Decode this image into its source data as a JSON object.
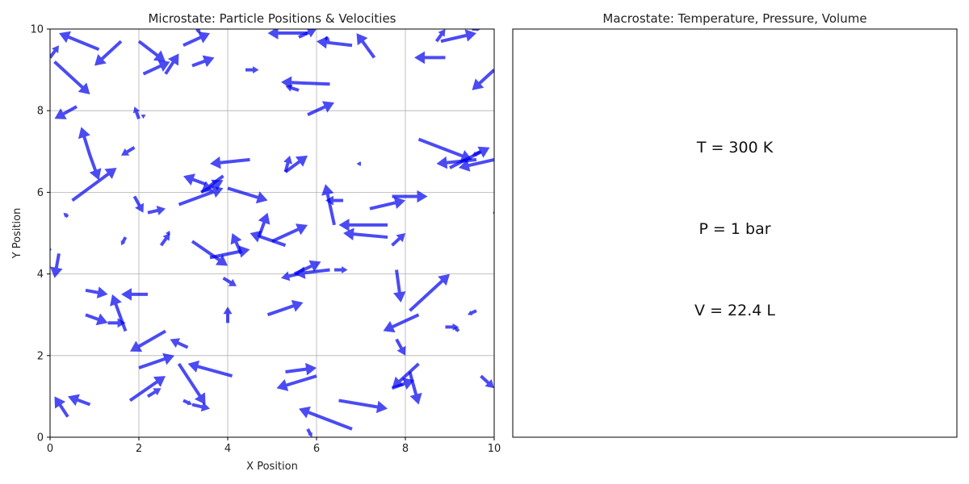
{
  "chart_data": [
    {
      "type": "quiver",
      "title": "Microstate: Particle Positions & Velocities",
      "xlabel": "X Position",
      "ylabel": "Y Position",
      "xlim": [
        0,
        10
      ],
      "ylim": [
        0,
        10
      ],
      "xticks": [
        0,
        2,
        4,
        6,
        8,
        10
      ],
      "yticks": [
        0,
        2,
        4,
        6,
        8,
        10
      ],
      "grid": true,
      "arrow_color": "#0000ee",
      "arrows": [
        [
          1.1,
          9.5,
          -0.9,
          0.4
        ],
        [
          0.0,
          9.3,
          0.2,
          0.3
        ],
        [
          0.1,
          9.2,
          0.8,
          -0.8
        ],
        [
          1.6,
          9.7,
          -0.6,
          -0.6
        ],
        [
          2.0,
          9.7,
          0.6,
          -0.5
        ],
        [
          2.6,
          8.9,
          0.3,
          0.5
        ],
        [
          2.1,
          8.9,
          0.6,
          0.3
        ],
        [
          3.0,
          9.6,
          0.6,
          0.3
        ],
        [
          3.2,
          9.1,
          0.5,
          0.2
        ],
        [
          3.3,
          10.0,
          0.1,
          -0.1
        ],
        [
          4.4,
          9.0,
          0.3,
          0.0
        ],
        [
          5.8,
          9.9,
          -0.9,
          0.0
        ],
        [
          5.6,
          9.8,
          0.4,
          0.2
        ],
        [
          6.2,
          9.8,
          0.1,
          -0.1
        ],
        [
          6.8,
          9.6,
          -0.8,
          0.1
        ],
        [
          7.3,
          9.3,
          -0.4,
          0.6
        ],
        [
          8.7,
          9.7,
          0.2,
          0.3
        ],
        [
          8.8,
          9.7,
          0.8,
          0.2
        ],
        [
          8.9,
          9.3,
          -0.7,
          0.0
        ],
        [
          9.5,
          10.0,
          0.2,
          0.0
        ],
        [
          10.0,
          9.0,
          -0.5,
          -0.5
        ],
        [
          6.3,
          8.65,
          -1.1,
          0.05
        ],
        [
          5.6,
          8.5,
          -0.3,
          0.1
        ],
        [
          5.8,
          7.9,
          0.6,
          0.3
        ],
        [
          0.6,
          8.1,
          -0.5,
          -0.3
        ],
        [
          2.0,
          7.8,
          -0.1,
          0.3
        ],
        [
          2.1,
          7.9,
          0.0,
          -0.1
        ],
        [
          1.9,
          7.1,
          -0.3,
          -0.2
        ],
        [
          0.9,
          6.9,
          -0.2,
          0.7
        ],
        [
          0.9,
          6.9,
          0.2,
          -0.6
        ],
        [
          0.5,
          5.8,
          1.0,
          0.8
        ],
        [
          4.5,
          6.8,
          -0.9,
          -0.1
        ],
        [
          3.9,
          6.4,
          -0.5,
          -0.4
        ],
        [
          3.5,
          6.2,
          -0.5,
          0.2
        ],
        [
          3.4,
          6.0,
          0.5,
          0.3
        ],
        [
          2.9,
          5.7,
          1.0,
          0.4
        ],
        [
          1.9,
          5.9,
          0.2,
          -0.4
        ],
        [
          2.2,
          5.5,
          0.4,
          0.1
        ],
        [
          0.4,
          5.4,
          -0.1,
          0.1
        ],
        [
          4.0,
          6.1,
          0.9,
          -0.3
        ],
        [
          5.3,
          6.5,
          0.1,
          0.4
        ],
        [
          5.3,
          6.5,
          0.5,
          0.4
        ],
        [
          7.0,
          6.7,
          -0.1,
          0.0
        ],
        [
          6.4,
          5.2,
          -0.2,
          1.0
        ],
        [
          6.6,
          5.8,
          -0.4,
          0.0
        ],
        [
          7.2,
          5.6,
          0.8,
          0.2
        ],
        [
          7.7,
          5.9,
          0.8,
          0.0
        ],
        [
          8.3,
          7.3,
          1.2,
          -0.5
        ],
        [
          9.0,
          6.6,
          0.9,
          0.5
        ],
        [
          9.6,
          6.8,
          -0.9,
          -0.1
        ],
        [
          9.7,
          7.0,
          -0.2,
          -0.1
        ],
        [
          10.0,
          6.8,
          -0.8,
          -0.2
        ],
        [
          10.0,
          5.5,
          0.0,
          0.0
        ],
        [
          1.7,
          4.9,
          -0.1,
          -0.2
        ],
        [
          2.5,
          4.7,
          0.2,
          0.3
        ],
        [
          2.7,
          5.0,
          -0.1,
          0.0
        ],
        [
          3.2,
          4.8,
          0.8,
          -0.6
        ],
        [
          3.6,
          4.4,
          0.9,
          0.2
        ],
        [
          4.3,
          4.5,
          -0.2,
          0.5
        ],
        [
          4.7,
          4.9,
          0.2,
          0.6
        ],
        [
          5.3,
          4.7,
          -0.8,
          0.3
        ],
        [
          5.0,
          4.8,
          0.8,
          0.4
        ],
        [
          7.6,
          5.2,
          -1.1,
          0.0
        ],
        [
          7.6,
          4.9,
          -1.0,
          0.1
        ],
        [
          7.7,
          4.7,
          0.3,
          0.3
        ],
        [
          0.2,
          4.5,
          -0.1,
          -0.6
        ],
        [
          0.0,
          4.6,
          0.0,
          0.0
        ],
        [
          5.5,
          4.0,
          0.6,
          0.3
        ],
        [
          5.6,
          4.0,
          -0.4,
          -0.1
        ],
        [
          6.3,
          4.1,
          -0.8,
          -0.1
        ],
        [
          6.4,
          4.1,
          0.3,
          0.0
        ],
        [
          3.9,
          3.9,
          0.3,
          -0.2
        ],
        [
          0.8,
          3.6,
          0.5,
          -0.1
        ],
        [
          2.2,
          3.5,
          -0.6,
          0.0
        ],
        [
          1.7,
          2.6,
          -0.3,
          0.9
        ],
        [
          0.8,
          3.0,
          0.5,
          -0.2
        ],
        [
          1.3,
          2.8,
          0.4,
          0.0
        ],
        [
          4.0,
          2.8,
          0.0,
          0.4
        ],
        [
          4.9,
          3.0,
          0.8,
          0.3
        ],
        [
          7.8,
          4.1,
          0.1,
          -0.8
        ],
        [
          8.1,
          3.1,
          0.9,
          0.9
        ],
        [
          9.6,
          3.1,
          -0.2,
          -0.1
        ],
        [
          8.3,
          3.0,
          -0.8,
          -0.4
        ],
        [
          9.2,
          2.6,
          -0.1,
          0.1
        ],
        [
          8.9,
          2.7,
          0.3,
          0.0
        ],
        [
          8.3,
          1.8,
          -0.6,
          -0.6
        ],
        [
          7.8,
          2.4,
          0.2,
          -0.4
        ],
        [
          2.6,
          2.6,
          -0.8,
          -0.5
        ],
        [
          3.1,
          2.2,
          -0.4,
          0.2
        ],
        [
          2.0,
          1.7,
          0.8,
          0.3
        ],
        [
          2.9,
          1.8,
          0.6,
          -1.0
        ],
        [
          4.1,
          1.5,
          -1.0,
          0.3
        ],
        [
          5.3,
          1.6,
          0.7,
          0.1
        ],
        [
          6.0,
          1.5,
          -0.9,
          -0.3
        ],
        [
          1.8,
          0.9,
          0.8,
          0.6
        ],
        [
          2.2,
          1.0,
          0.3,
          0.2
        ],
        [
          3.2,
          0.8,
          0.4,
          -0.1
        ],
        [
          3.0,
          0.9,
          0.2,
          -0.1
        ],
        [
          0.4,
          0.5,
          -0.3,
          0.5
        ],
        [
          0.9,
          0.8,
          -0.5,
          0.2
        ],
        [
          6.8,
          0.2,
          -1.2,
          0.5
        ],
        [
          5.8,
          0.2,
          0.1,
          -0.2
        ],
        [
          6.5,
          0.9,
          1.1,
          -0.2
        ],
        [
          7.7,
          1.2,
          0.5,
          0.2
        ],
        [
          8.1,
          1.6,
          0.2,
          -0.8
        ],
        [
          9.7,
          1.5,
          0.3,
          -0.3
        ]
      ]
    },
    {
      "type": "text-panel",
      "title": "Macrostate: Temperature, Pressure, Volume",
      "lines": [
        "T = 300 K",
        "P = 1 bar",
        "V = 22.4 L"
      ]
    }
  ]
}
